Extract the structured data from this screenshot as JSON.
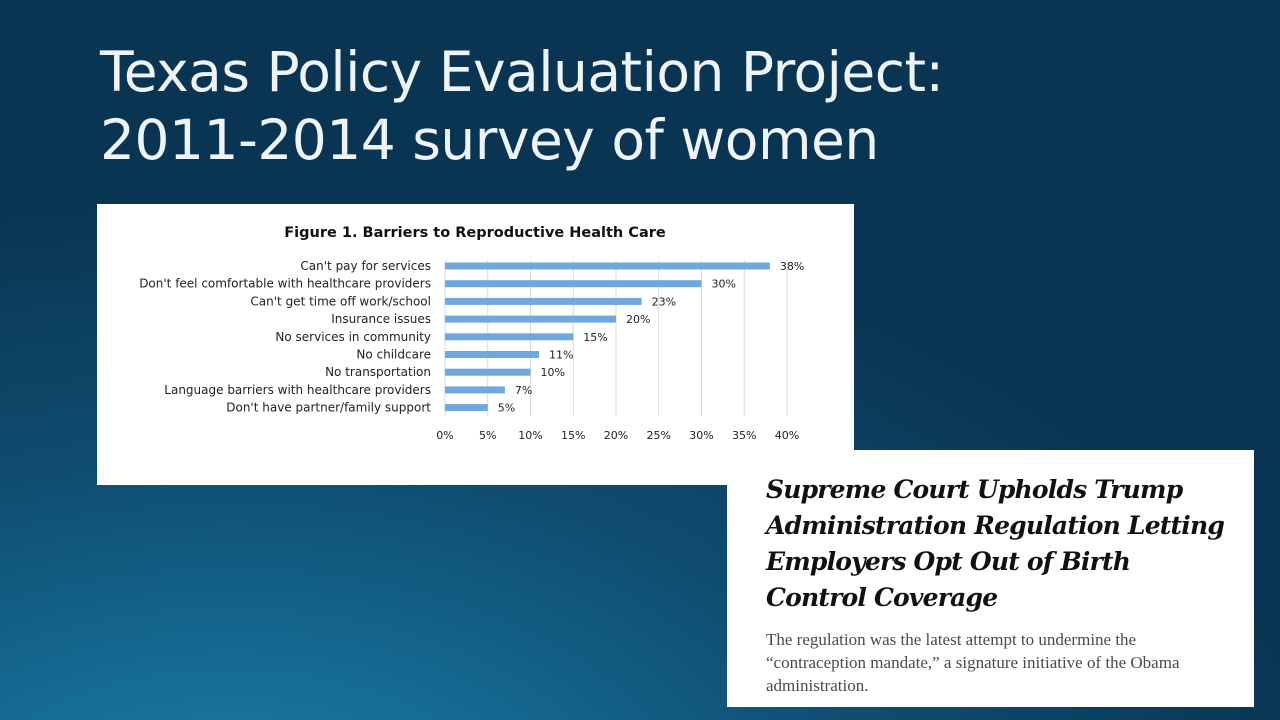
{
  "slide": {
    "title_line1": "Texas Policy Evaluation Project:",
    "title_line2": "2011-2014 survey of women"
  },
  "chart_data": {
    "type": "bar",
    "orientation": "horizontal",
    "title": "Figure 1. Barriers to Reproductive Health Care",
    "categories": [
      "Can't pay for services",
      "Don't feel comfortable with healthcare providers",
      "Can't get time off work/school",
      "Insurance issues",
      "No services in community",
      "No childcare",
      "No transportation",
      "Language barriers with healthcare providers",
      "Don't have partner/family support"
    ],
    "values": [
      38,
      30,
      23,
      20,
      15,
      11,
      10,
      7,
      5
    ],
    "value_labels": [
      "38%",
      "30%",
      "23%",
      "20%",
      "15%",
      "11%",
      "10%",
      "7%",
      "5%"
    ],
    "xlim": [
      0,
      40
    ],
    "ticks": [
      0,
      5,
      10,
      15,
      20,
      25,
      30,
      35,
      40
    ],
    "tick_labels": [
      "0%",
      "5%",
      "10%",
      "15%",
      "20%",
      "25%",
      "30%",
      "35%",
      "40%"
    ],
    "xlabel": "",
    "ylabel": "",
    "grid": "vertical",
    "bar_color": "#6fa8dc",
    "grid_color": "#d9d9d9"
  },
  "news": {
    "headline": "Supreme Court Upholds Trump Administration Regulation Letting Employers Opt Out of Birth Control Coverage",
    "summary": "The regulation was the latest attempt to undermine the “contraception mandate,” a signature initiative of the Obama administration."
  }
}
